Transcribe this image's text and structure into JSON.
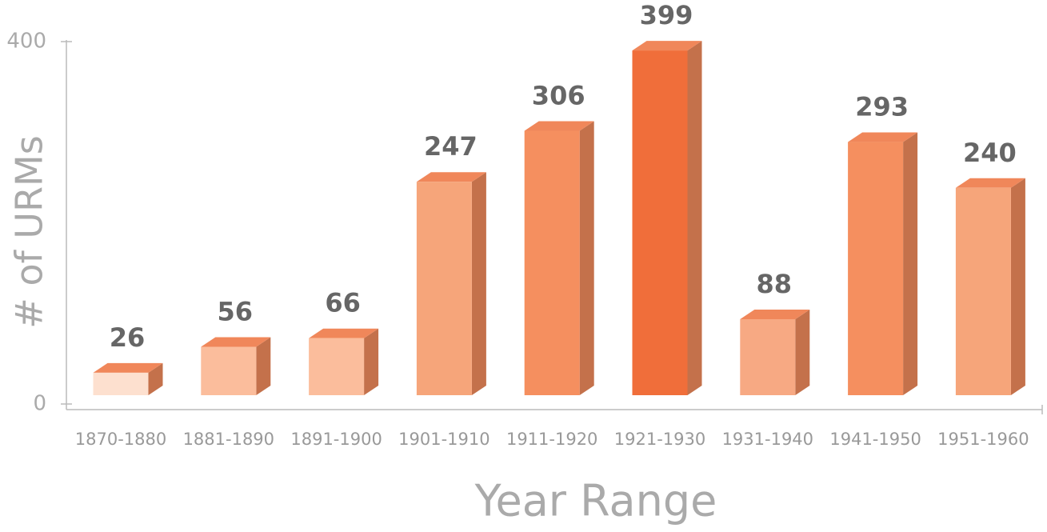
{
  "chart_data": {
    "type": "bar3d",
    "x_label": "Year Range",
    "y_label": "# of URMs",
    "categories": [
      "1870-1880",
      "1881-1890",
      "1891-1900",
      "1901-1910",
      "1911-1920",
      "1921-1930",
      "1931-1940",
      "1941-1950",
      "1951-1960"
    ],
    "values": [
      26,
      56,
      66,
      247,
      306,
      399,
      88,
      293,
      240
    ],
    "colors": [
      "#fde0cf",
      "#fbbd9c",
      "#fbbd9c",
      "#f6a57a",
      "#f58f5f",
      "#f06e3a",
      "#f7a983",
      "#f58f5f",
      "#f6a57a"
    ],
    "ylim": [
      0,
      400
    ],
    "yticks": [
      0,
      400
    ]
  }
}
